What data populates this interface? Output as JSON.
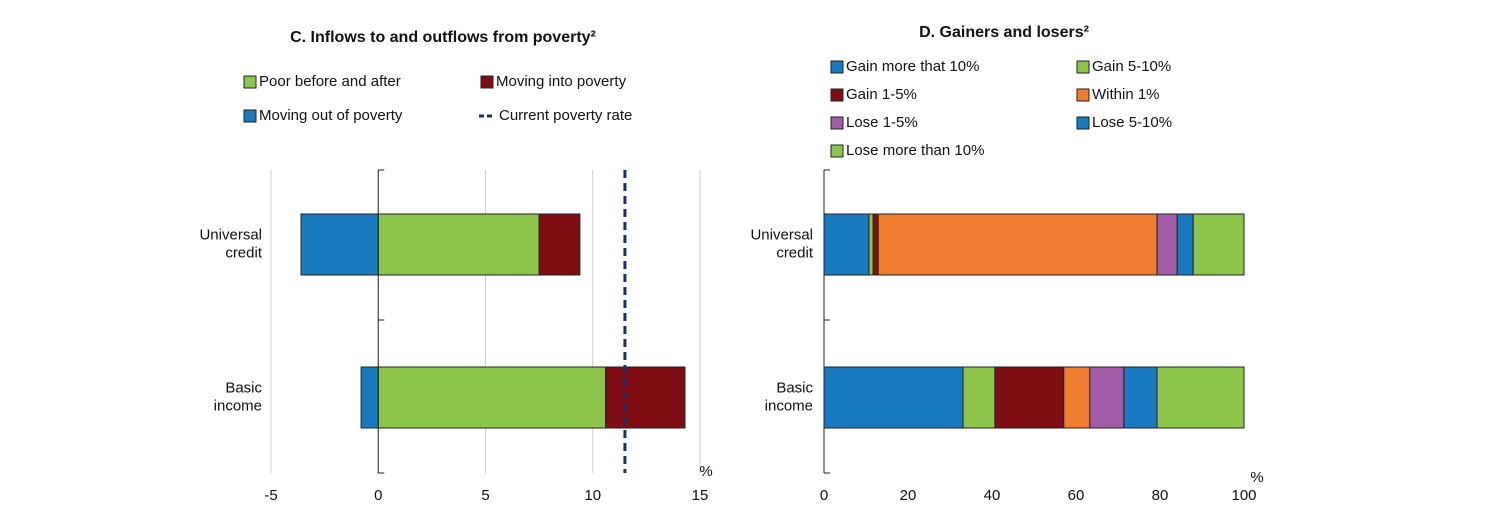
{
  "chart_data": [
    {
      "type": "bar",
      "orientation": "horizontal",
      "stacked": true,
      "title": "C. Inflows to and outflows from poverty²",
      "categories": [
        "Universal credit",
        "Basic income"
      ],
      "series": [
        {
          "name": "Moving out of poverty",
          "color": "#1a7abf",
          "values": [
            -3.6,
            -0.8
          ]
        },
        {
          "name": "Poor before and after",
          "color": "#8dc54b",
          "values": [
            7.5,
            10.6
          ]
        },
        {
          "name": "Moving into poverty",
          "color": "#7f0e14",
          "values": [
            1.9,
            3.7
          ]
        }
      ],
      "reference_line": {
        "name": "Current poverty rate",
        "value": 11.5,
        "color": "#1b2f6b"
      },
      "xlim": [
        -5,
        15
      ],
      "xticks": [
        -5,
        0,
        5,
        10,
        15
      ],
      "x_unit": "%",
      "grid": true
    },
    {
      "type": "bar",
      "orientation": "horizontal",
      "stacked": true,
      "title": "D. Gainers and losers²",
      "categories": [
        "Universal credit",
        "Basic income"
      ],
      "series": [
        {
          "name": "Gain more that 10%",
          "color": "#1a7abf",
          "values": [
            10.7,
            33.1
          ]
        },
        {
          "name": "Gain 5-10%",
          "color": "#8dc54b",
          "values": [
            1.0,
            7.6
          ]
        },
        {
          "name": "Gain 1-5%",
          "color": "#7f0e14",
          "values": [
            1.2,
            16.4
          ]
        },
        {
          "name": "Within 1%",
          "color": "#f07d2f",
          "values": [
            66.4,
            6.2
          ]
        },
        {
          "name": "Lose 1-5%",
          "color": "#a25ca7",
          "values": [
            4.8,
            8.1
          ]
        },
        {
          "name": "Lose 5-10%",
          "color": "#1a7abf",
          "values": [
            3.8,
            7.9
          ]
        },
        {
          "name": "Lose more than 10%",
          "color": "#8dc54b",
          "values": [
            12.1,
            20.7
          ]
        }
      ],
      "xlim": [
        0,
        100
      ],
      "xticks": [
        0,
        20,
        40,
        60,
        80,
        100
      ],
      "x_unit": "%",
      "grid": false
    }
  ]
}
